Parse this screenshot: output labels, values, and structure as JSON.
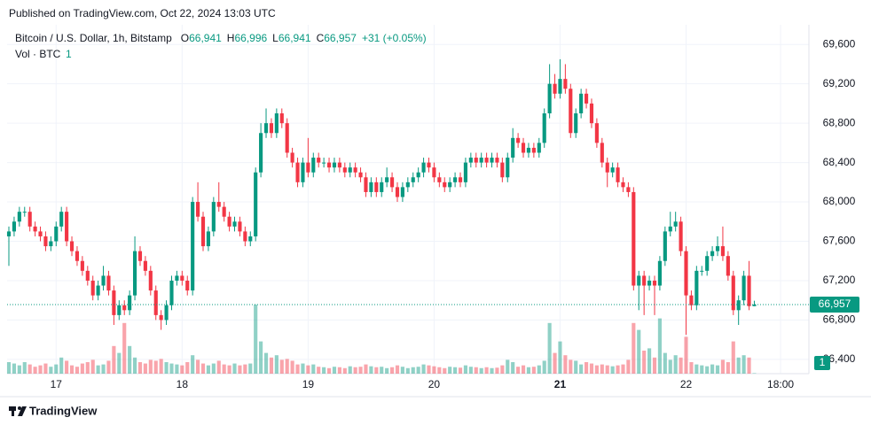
{
  "header": {
    "published": "Published on TradingView.com, Oct 22, 2024 13:03 UTC"
  },
  "chart_data": {
    "type": "candlestick",
    "title": "Bitcoin / U.S. Dollar, 1h, Bitstamp",
    "ohlc_legend": [
      {
        "key": "O",
        "value": "66,941"
      },
      {
        "key": "H",
        "value": "66,996"
      },
      {
        "key": "L",
        "value": "66,941"
      },
      {
        "key": "C",
        "value": "66,957"
      }
    ],
    "change": "+31 (+0.05%)",
    "volume_title": "Vol · BTC",
    "volume_legend": "1",
    "open": [
      67650,
      67700,
      67800,
      67900,
      67900,
      67750,
      67700,
      67650,
      67550,
      67600,
      67750,
      67900,
      67600,
      67500,
      67400,
      67300,
      67200,
      67050,
      67150,
      67250,
      67100,
      66850,
      66950,
      66900,
      67050,
      67500,
      67400,
      67300,
      67100,
      66850,
      66800,
      66950,
      67200,
      67250,
      67200,
      67100,
      68000,
      67850,
      67550,
      67700,
      68000,
      67950,
      67850,
      67750,
      67800,
      67700,
      67600,
      67650,
      68300,
      68700,
      68800,
      68700,
      68900,
      68800,
      68500,
      68400,
      68200,
      68400,
      68300,
      68450,
      68400,
      68400,
      68350,
      68400,
      68350,
      68300,
      68350,
      68300,
      68250,
      68100,
      68200,
      68100,
      68200,
      68250,
      68150,
      68050,
      68150,
      68200,
      68250,
      68300,
      68400,
      68350,
      68250,
      68200,
      68150,
      68200,
      68250,
      68200,
      68400,
      68450,
      68400,
      68450,
      68400,
      68450,
      68400,
      68250,
      68450,
      68650,
      68600,
      68500,
      68550,
      68500,
      68600,
      68900,
      69200,
      69100,
      69250,
      69150,
      68700,
      68900,
      69100,
      69000,
      68800,
      68600,
      68400,
      68300,
      68350,
      68200,
      68150,
      68100,
      67150,
      67250,
      67150,
      67200,
      67150,
      67400,
      67700,
      67750,
      67800,
      67500,
      67050,
      66950,
      67300,
      67300,
      67450,
      67500,
      67550,
      67450,
      67250,
      66900,
      67000,
      67250,
      66941
    ],
    "high": [
      67750,
      67850,
      67950,
      67950,
      67950,
      67800,
      67750,
      67700,
      67650,
      67800,
      67950,
      67950,
      67650,
      67550,
      67450,
      67350,
      67250,
      67200,
      67350,
      67300,
      67150,
      67000,
      67000,
      67100,
      67650,
      67550,
      67450,
      67350,
      67150,
      66900,
      67000,
      67250,
      67300,
      67300,
      67250,
      68050,
      68200,
      67900,
      67750,
      68050,
      68200,
      68000,
      67900,
      67850,
      67850,
      67750,
      67700,
      68350,
      68800,
      68950,
      68850,
      68950,
      68950,
      68850,
      68550,
      68450,
      68450,
      68650,
      68500,
      68500,
      68450,
      68450,
      68450,
      68450,
      68400,
      68400,
      68400,
      68350,
      68300,
      68250,
      68250,
      68250,
      68350,
      68300,
      68200,
      68200,
      68250,
      68300,
      68350,
      68450,
      68450,
      68400,
      68300,
      68250,
      68250,
      68300,
      68300,
      68450,
      68500,
      68500,
      68500,
      68500,
      68500,
      68500,
      68450,
      68500,
      68750,
      68700,
      68650,
      68600,
      68600,
      68650,
      68950,
      69400,
      69300,
      69450,
      69400,
      69200,
      68950,
      69150,
      69150,
      69050,
      68850,
      68650,
      68450,
      68400,
      68400,
      68250,
      68200,
      68150,
      67300,
      67300,
      67250,
      67250,
      67450,
      67750,
      67900,
      67900,
      67850,
      67550,
      67100,
      67350,
      67350,
      67500,
      67550,
      67650,
      67750,
      67500,
      67300,
      67050,
      67300,
      67400,
      66996
    ],
    "low": [
      67350,
      67650,
      67750,
      67850,
      67700,
      67650,
      67600,
      67500,
      67500,
      67550,
      67700,
      67550,
      67450,
      67350,
      67250,
      67150,
      67000,
      67000,
      67100,
      67050,
      66750,
      66800,
      66850,
      66850,
      67000,
      67350,
      67250,
      67050,
      66800,
      66700,
      66750,
      66900,
      67150,
      67150,
      67050,
      67050,
      67800,
      67500,
      67500,
      67650,
      67900,
      67800,
      67700,
      67700,
      67650,
      67550,
      67550,
      67600,
      68250,
      68650,
      68650,
      68650,
      68750,
      68450,
      68350,
      68150,
      68150,
      68250,
      68250,
      68350,
      68350,
      68300,
      68300,
      68300,
      68250,
      68250,
      68250,
      68200,
      68050,
      68050,
      68050,
      68050,
      68150,
      68100,
      68000,
      68000,
      68100,
      68150,
      68200,
      68250,
      68300,
      68200,
      68150,
      68100,
      68100,
      68150,
      68150,
      68150,
      68350,
      68350,
      68350,
      68350,
      68350,
      68350,
      68200,
      68200,
      68400,
      68550,
      68450,
      68450,
      68450,
      68450,
      68550,
      68850,
      69050,
      69050,
      69100,
      68650,
      68650,
      68850,
      68950,
      68750,
      68550,
      68350,
      68150,
      68250,
      68150,
      68100,
      68050,
      67100,
      66900,
      66850,
      67100,
      66850,
      67100,
      67350,
      67650,
      67700,
      67450,
      66650,
      66900,
      66900,
      67250,
      67250,
      67400,
      67450,
      67400,
      67200,
      66850,
      66750,
      66950,
      66900,
      66941
    ],
    "close": [
      67700,
      67800,
      67900,
      67900,
      67750,
      67700,
      67650,
      67550,
      67600,
      67750,
      67900,
      67600,
      67500,
      67400,
      67300,
      67200,
      67050,
      67150,
      67250,
      67100,
      66850,
      66950,
      66900,
      67050,
      67500,
      67400,
      67300,
      67100,
      66850,
      66800,
      66950,
      67200,
      67250,
      67200,
      67100,
      68000,
      67850,
      67550,
      67700,
      68000,
      67950,
      67850,
      67750,
      67800,
      67700,
      67600,
      67650,
      68300,
      68700,
      68800,
      68700,
      68900,
      68800,
      68500,
      68400,
      68200,
      68400,
      68300,
      68450,
      68400,
      68400,
      68350,
      68400,
      68350,
      68300,
      68350,
      68300,
      68250,
      68100,
      68200,
      68100,
      68200,
      68250,
      68150,
      68050,
      68150,
      68200,
      68250,
      68300,
      68400,
      68350,
      68250,
      68200,
      68150,
      68200,
      68250,
      68200,
      68400,
      68450,
      68400,
      68450,
      68400,
      68450,
      68400,
      68250,
      68450,
      68650,
      68600,
      68500,
      68550,
      68500,
      68600,
      68900,
      69200,
      69100,
      69250,
      69150,
      68700,
      68900,
      69100,
      69000,
      68800,
      68600,
      68400,
      68300,
      68350,
      68200,
      68150,
      68100,
      67150,
      67250,
      67150,
      67200,
      67150,
      67400,
      67700,
      67750,
      67800,
      67500,
      67050,
      66950,
      67300,
      67300,
      67450,
      67500,
      67550,
      67450,
      67250,
      66900,
      67000,
      67250,
      66941,
      66957
    ],
    "volume": [
      25,
      22,
      18,
      25,
      20,
      15,
      18,
      22,
      15,
      20,
      35,
      28,
      18,
      15,
      22,
      25,
      30,
      18,
      20,
      28,
      60,
      45,
      110,
      60,
      35,
      25,
      22,
      30,
      28,
      32,
      25,
      22,
      20,
      18,
      25,
      40,
      30,
      22,
      18,
      22,
      28,
      20,
      18,
      22,
      18,
      20,
      22,
      150,
      70,
      45,
      35,
      40,
      30,
      32,
      28,
      20,
      22,
      18,
      20,
      15,
      14,
      12,
      15,
      14,
      12,
      16,
      14,
      15,
      20,
      16,
      14,
      15,
      12,
      14,
      18,
      15,
      12,
      14,
      15,
      20,
      18,
      16,
      14,
      12,
      15,
      14,
      13,
      18,
      15,
      14,
      12,
      14,
      12,
      13,
      18,
      30,
      25,
      15,
      18,
      14,
      15,
      18,
      28,
      110,
      45,
      70,
      40,
      30,
      28,
      20,
      25,
      22,
      18,
      20,
      18,
      16,
      18,
      20,
      30,
      110,
      95,
      50,
      55,
      35,
      120,
      45,
      30,
      40,
      35,
      80,
      25,
      20,
      18,
      16,
      20,
      18,
      30,
      25,
      70,
      35,
      40,
      35,
      1
    ],
    "up_color": "#089981",
    "down_color": "#f23645",
    "last_price_label": "66,957",
    "last_volume_label": "1",
    "xlim": [
      -0.34,
      152.4
    ],
    "xticks": [
      {
        "value": 9,
        "label": "17"
      },
      {
        "value": 33,
        "label": "18"
      },
      {
        "value": 57,
        "label": "19"
      },
      {
        "value": 81,
        "label": "20"
      },
      {
        "value": 105,
        "label": "21"
      },
      {
        "value": 129,
        "label": "22"
      },
      {
        "value": 147,
        "label": "18:00"
      }
    ],
    "ylim": [
      66255,
      69800
    ],
    "yticks": [
      {
        "value": 66400,
        "label": "66,400"
      },
      {
        "value": 66800,
        "label": "66,800"
      },
      {
        "value": 67200,
        "label": "67,200"
      },
      {
        "value": 67600,
        "label": "67,600"
      },
      {
        "value": 68000,
        "label": "68,000"
      },
      {
        "value": 68400,
        "label": "68,400"
      },
      {
        "value": 68800,
        "label": "68,800"
      },
      {
        "value": 69200,
        "label": "69,200"
      },
      {
        "value": 69600,
        "label": "69,600"
      }
    ],
    "grid": true
  },
  "footer": {
    "brand": "TradingView"
  }
}
